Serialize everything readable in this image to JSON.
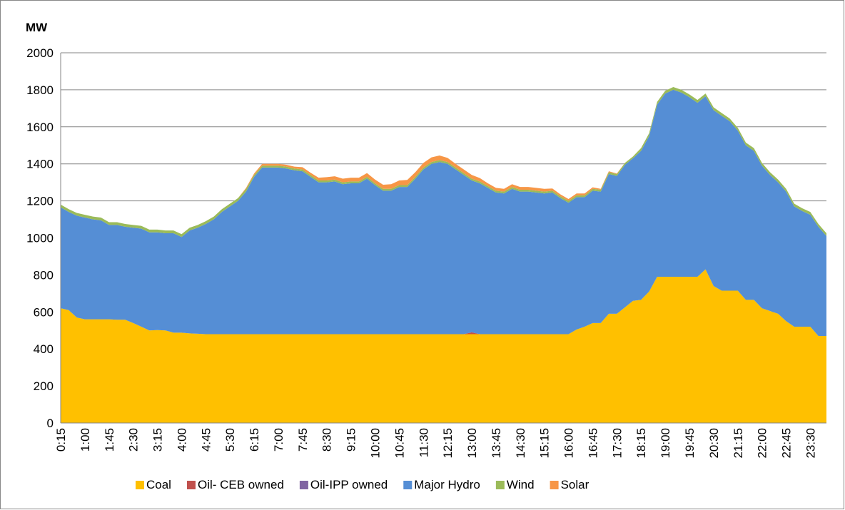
{
  "chart_data": {
    "type": "stacked-area",
    "y_label": "MW",
    "categories": [
      "0:15",
      null,
      null,
      "1:00",
      null,
      null,
      "1:45",
      null,
      null,
      "2:30",
      null,
      null,
      "3:15",
      null,
      null,
      "4:00",
      null,
      null,
      "4:45",
      null,
      null,
      "5:30",
      null,
      null,
      "6:15",
      null,
      null,
      "7:00",
      null,
      null,
      "7:45",
      null,
      null,
      "8:30",
      null,
      null,
      "9:15",
      null,
      null,
      "10:00",
      null,
      null,
      "10:45",
      null,
      null,
      "11:30",
      null,
      null,
      "12:15",
      null,
      null,
      "13:00",
      null,
      null,
      "13:45",
      null,
      null,
      "14:30",
      null,
      null,
      "15:15",
      null,
      null,
      "16:00",
      null,
      null,
      "16:45",
      null,
      null,
      "17:30",
      null,
      null,
      "18:15",
      null,
      null,
      "19:00",
      null,
      null,
      "19:45",
      null,
      null,
      "20:30",
      null,
      null,
      "21:15",
      null,
      null,
      "22:00",
      null,
      null,
      "22:45",
      null,
      null,
      "23:30",
      null,
      null
    ],
    "series": [
      {
        "name": "Coal",
        "color": "#ffc000",
        "values": [
          620,
          610,
          570,
          560,
          560,
          560,
          560,
          558,
          558,
          540,
          520,
          500,
          502,
          500,
          488,
          488,
          484,
          482,
          480,
          480,
          480,
          480,
          480,
          480,
          480,
          480,
          480,
          480,
          480,
          480,
          480,
          480,
          480,
          480,
          480,
          480,
          480,
          480,
          480,
          480,
          480,
          480,
          480,
          480,
          480,
          480,
          480,
          480,
          480,
          480,
          480,
          480,
          480,
          480,
          480,
          480,
          480,
          480,
          480,
          480,
          480,
          480,
          480,
          480,
          505,
          520,
          540,
          540,
          590,
          590,
          625,
          660,
          665,
          710,
          790,
          790,
          790,
          790,
          790,
          790,
          830,
          740,
          715,
          715,
          715,
          665,
          665,
          620,
          605,
          590,
          550,
          520,
          520,
          520,
          470,
          470
        ]
      },
      {
        "name": "Oil- CEB owned",
        "color": "#c0504d",
        "values": [
          0,
          0,
          0,
          0,
          0,
          0,
          0,
          0,
          0,
          0,
          0,
          0,
          0,
          0,
          0,
          0,
          0,
          0,
          0,
          0,
          0,
          0,
          0,
          0,
          0,
          0,
          0,
          0,
          0,
          0,
          0,
          0,
          0,
          0,
          0,
          0,
          0,
          0,
          0,
          0,
          0,
          0,
          0,
          0,
          0,
          0,
          0,
          0,
          0,
          0,
          0,
          10,
          0,
          0,
          0,
          0,
          0,
          0,
          0,
          0,
          0,
          0,
          0,
          0,
          0,
          0,
          0,
          0,
          0,
          0,
          0,
          0,
          0,
          0,
          0,
          0,
          0,
          0,
          0,
          0,
          0,
          0,
          0,
          0,
          0,
          0,
          0,
          0,
          0,
          0,
          0,
          0,
          0,
          0,
          0,
          0
        ]
      },
      {
        "name": "Oil-IPP owned",
        "color": "#8064a2",
        "values": [
          0,
          0,
          0,
          0,
          0,
          0,
          0,
          0,
          0,
          0,
          0,
          0,
          0,
          0,
          0,
          0,
          0,
          0,
          0,
          0,
          0,
          0,
          0,
          0,
          0,
          0,
          0,
          0,
          0,
          0,
          0,
          0,
          0,
          0,
          0,
          0,
          0,
          0,
          0,
          0,
          0,
          0,
          0,
          0,
          0,
          0,
          0,
          0,
          0,
          0,
          0,
          0,
          0,
          0,
          0,
          0,
          0,
          0,
          0,
          0,
          0,
          0,
          0,
          0,
          0,
          0,
          0,
          0,
          0,
          0,
          0,
          0,
          0,
          0,
          0,
          0,
          0,
          0,
          0,
          0,
          0,
          0,
          0,
          0,
          0,
          0,
          0,
          0,
          0,
          0,
          0,
          0,
          0,
          0,
          0,
          0
        ]
      },
      {
        "name": "Major Hydro",
        "color": "#558ed5",
        "values": [
          545,
          530,
          550,
          550,
          540,
          535,
          510,
          512,
          502,
          515,
          530,
          530,
          528,
          525,
          537,
          517,
          556,
          573,
          595,
          620,
          660,
          690,
          720,
          770,
          850,
          900,
          900,
          900,
          895,
          885,
          880,
          850,
          820,
          820,
          825,
          810,
          815,
          815,
          840,
          805,
          775,
          775,
          795,
          795,
          840,
          890,
          920,
          930,
          920,
          890,
          860,
          820,
          815,
          790,
          765,
          760,
          785,
          770,
          770,
          765,
          760,
          765,
          735,
          710,
          715,
          700,
          715,
          710,
          755,
          745,
          770,
          770,
          805,
          840,
          930,
          990,
          1010,
          995,
          970,
          940,
          935,
          950,
          945,
          915,
          865,
          835,
          805,
          770,
          735,
          710,
          700,
          650,
          625,
          605,
          590,
          540
        ]
      },
      {
        "name": "Wind",
        "color": "#9bbb59",
        "values": [
          15,
          15,
          15,
          15,
          15,
          15,
          15,
          15,
          15,
          15,
          15,
          15,
          15,
          15,
          15,
          15,
          15,
          15,
          15,
          15,
          15,
          15,
          15,
          15,
          10,
          10,
          10,
          10,
          10,
          10,
          10,
          10,
          10,
          10,
          10,
          10,
          10,
          10,
          10,
          10,
          10,
          10,
          10,
          10,
          10,
          10,
          10,
          10,
          10,
          10,
          10,
          10,
          10,
          10,
          10,
          10,
          10,
          10,
          10,
          10,
          10,
          10,
          10,
          10,
          10,
          10,
          10,
          10,
          10,
          10,
          10,
          10,
          15,
          15,
          15,
          15,
          15,
          15,
          15,
          15,
          15,
          15,
          15,
          15,
          15,
          15,
          15,
          15,
          15,
          15,
          15,
          15,
          15,
          15,
          15,
          15
        ]
      },
      {
        "name": "Solar",
        "color": "#f79646",
        "values": [
          0,
          0,
          0,
          0,
          0,
          0,
          0,
          0,
          0,
          0,
          0,
          0,
          0,
          0,
          0,
          0,
          0,
          0,
          0,
          0,
          0,
          0,
          0,
          5,
          8,
          10,
          10,
          10,
          10,
          10,
          12,
          12,
          15,
          18,
          18,
          20,
          20,
          20,
          20,
          20,
          22,
          25,
          25,
          28,
          25,
          25,
          25,
          25,
          22,
          20,
          20,
          20,
          18,
          15,
          15,
          15,
          15,
          15,
          15,
          15,
          15,
          12,
          10,
          10,
          10,
          10,
          8,
          5,
          5,
          3,
          0,
          0,
          0,
          0,
          0,
          0,
          0,
          0,
          0,
          0,
          0,
          0,
          0,
          0,
          0,
          0,
          0,
          0,
          0,
          0,
          0,
          0,
          0,
          0,
          0,
          0
        ]
      }
    ],
    "ylim": [
      0,
      2000
    ],
    "yticks": [
      0,
      200,
      400,
      600,
      800,
      1000,
      1200,
      1400,
      1600,
      1800,
      2000
    ],
    "grid": true,
    "legend": "bottom"
  }
}
